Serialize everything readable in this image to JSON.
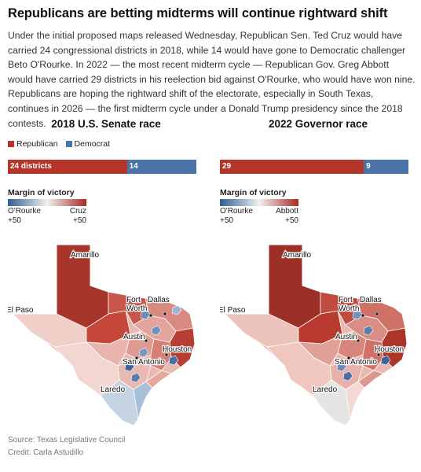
{
  "article": {
    "title": "Republicans are betting midterms will continue rightward shift",
    "intro": "Under the initial proposed maps released Wednesday, Republican Sen. Ted Cruz would have carried 24 congressional districts in 2018, while 14 would have gone to Democratic challenger Beto O'Rourke. In 2022 — the most recent midterm cycle — Republican Gov. Greg Abbott would have carried 29 districts in his reelection bid against O'Rourke, who would have won nine. Republicans are hoping the rightward shift of the electorate, especially in South Texas, continues in 2026 — the first midterm cycle under a Donald Trump presidency since the 2018 contests."
  },
  "colors": {
    "republican": "#b5352a",
    "democrat": "#4a74a8",
    "light_gray": "#e2e2e2"
  },
  "legend": {
    "republican": "Republican",
    "democrat": "Democrat"
  },
  "panels": {
    "senate": {
      "title": "2018 U.S. Senate race",
      "rep_label": "24 districts",
      "dem_label": "14",
      "rep_count": 24,
      "dem_count": 14,
      "margin_title": "Margin of victory",
      "left_name": "O'Rourke",
      "left_value": "+50",
      "right_name": "Cruz",
      "right_value": "+50"
    },
    "governor": {
      "title": "2022 Governor race",
      "rep_label": "29",
      "dem_label": "9",
      "rep_count": 29,
      "dem_count": 9,
      "margin_title": "Margin of victory",
      "left_name": "O'Rourke",
      "left_value": "+50",
      "right_name": "Abbott",
      "right_value": "+50"
    }
  },
  "cities": {
    "amarillo": "Amarillo",
    "dallas": "Dallas",
    "fort_worth": "Fort\nWorth",
    "el_paso": "El Paso",
    "austin": "Austin",
    "houston": "Houston",
    "san_antonio": "San Antonio",
    "laredo": "Laredo"
  },
  "footer": {
    "source": "Source: Texas Legislative Council",
    "credit": "Credit: Carla Astudillo"
  }
}
